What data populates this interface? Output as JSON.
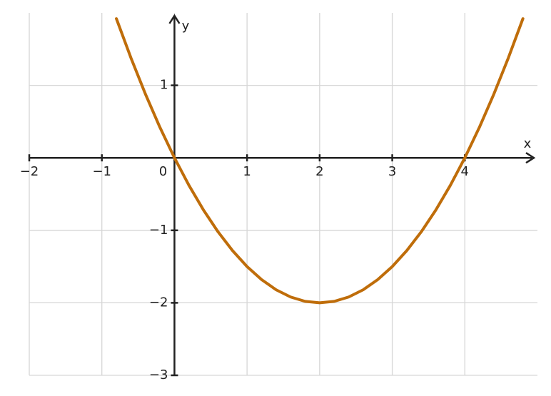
{
  "chart_data": {
    "type": "line",
    "x_label": "x",
    "y_label": "y",
    "x": [
      -0.8,
      -0.6,
      -0.4,
      -0.2,
      0,
      0.2,
      0.4,
      0.6,
      0.8,
      1.0,
      1.2,
      1.4,
      1.6,
      1.8,
      2.0,
      2.2,
      2.4,
      2.6,
      2.8,
      3.0,
      3.2,
      3.4,
      3.6,
      3.8,
      4.0,
      4.2,
      4.4,
      4.6,
      4.8
    ],
    "values": [
      1.92,
      1.38,
      0.88,
      0.42,
      0,
      -0.38,
      -0.72,
      -1.02,
      -1.28,
      -1.5,
      -1.68,
      -1.82,
      -1.92,
      -1.98,
      -2,
      -1.98,
      -1.92,
      -1.82,
      -1.68,
      -1.5,
      -1.28,
      -1.02,
      -0.72,
      -0.38,
      0,
      0.42,
      0.88,
      1.38,
      1.92
    ],
    "color": "#bf6d0a",
    "xlim": [
      -2,
      5
    ],
    "ylim": [
      -3,
      2
    ],
    "xticks": [
      {
        "value": -2,
        "label": "−2"
      },
      {
        "value": -1,
        "label": "−1"
      },
      0,
      1,
      2,
      3,
      4
    ],
    "yticks": [
      {
        "value": -3,
        "label": "−3"
      },
      {
        "value": -2,
        "label": "−2"
      },
      {
        "value": -1,
        "label": "−1"
      },
      1
    ],
    "grid": true
  }
}
